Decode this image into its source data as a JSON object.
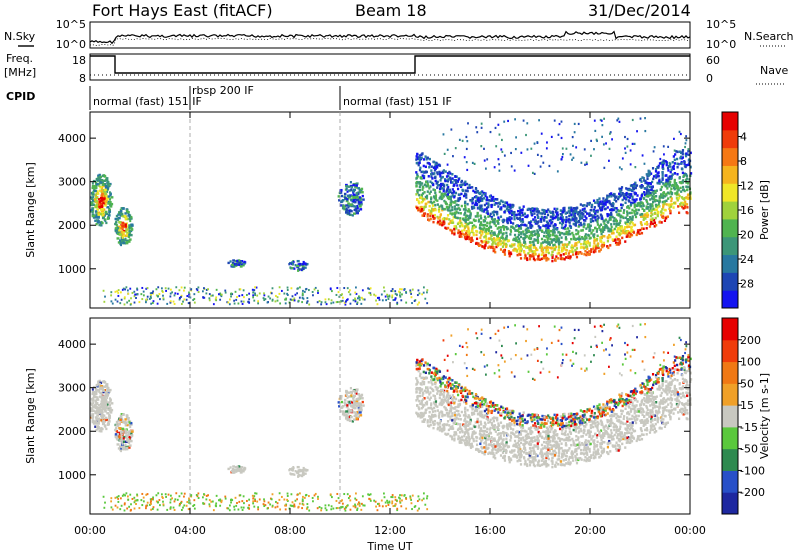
{
  "header": {
    "station": "Fort Hays East (fitACF)",
    "beam": "Beam 18",
    "date": "31/Dec/2014"
  },
  "side_labels": {
    "nsky": "N.Sky",
    "nsearch": "N.Search",
    "freq": "Freq.",
    "freq_unit": "[MHz]",
    "nave": "Nave",
    "cpid": "CPID"
  },
  "noise_axis": {
    "left_ticks": [
      "10^5",
      "10^0"
    ],
    "right_ticks": [
      "10^5",
      "10^0"
    ]
  },
  "freq_axis": {
    "left_ticks": [
      "18",
      "8"
    ],
    "right_ticks": [
      "60",
      "0"
    ]
  },
  "cpid_segments": [
    {
      "label": "normal (fast) 151 IF",
      "start_h": 0.0
    },
    {
      "label": "rbsp 200 IF",
      "start_h": 4.0
    },
    {
      "label": "normal (fast) 151 IF",
      "start_h": 10.0
    }
  ],
  "chart_data": [
    {
      "type": "heatmap",
      "panel": "power",
      "ylabel": "Slant Range [km]",
      "ylim": [
        100,
        4600
      ],
      "y_ticks": [
        1000,
        2000,
        3000,
        4000
      ],
      "xlim_hours": [
        0,
        24
      ],
      "colorbar_label": "Power [dB]",
      "colorbar_ticks": [
        "4",
        "8",
        "12",
        "16",
        "20",
        "24",
        "28"
      ],
      "colorbar_colors": [
        "#1414f0",
        "#1e46b4",
        "#2878a0",
        "#3c9678",
        "#50b450",
        "#a0d23c",
        "#f0e628",
        "#f5b41e",
        "#f57814",
        "#f03c0a",
        "#e60000"
      ]
    },
    {
      "type": "heatmap",
      "panel": "velocity",
      "ylabel": "Slant Range [km]",
      "ylim": [
        100,
        4600
      ],
      "y_ticks": [
        1000,
        2000,
        3000,
        4000
      ],
      "xlim_hours": [
        0,
        24
      ],
      "colorbar_label": "Velocity [m s-1]",
      "colorbar_ticks": [
        "200",
        "100",
        "50",
        "15",
        "-15",
        "-50",
        "-100",
        "-200"
      ],
      "colorbar_colors": [
        "#1e28a0",
        "#2850c8",
        "#2e8a50",
        "#5ac83c",
        "#c8c8c0",
        "#f0a028",
        "#f07814",
        "#f03c0a",
        "#e60000"
      ]
    }
  ],
  "x_axis": {
    "label": "Time UT",
    "ticks": [
      "00:00",
      "04:00",
      "08:00",
      "12:00",
      "16:00",
      "20:00",
      "00:00"
    ]
  }
}
